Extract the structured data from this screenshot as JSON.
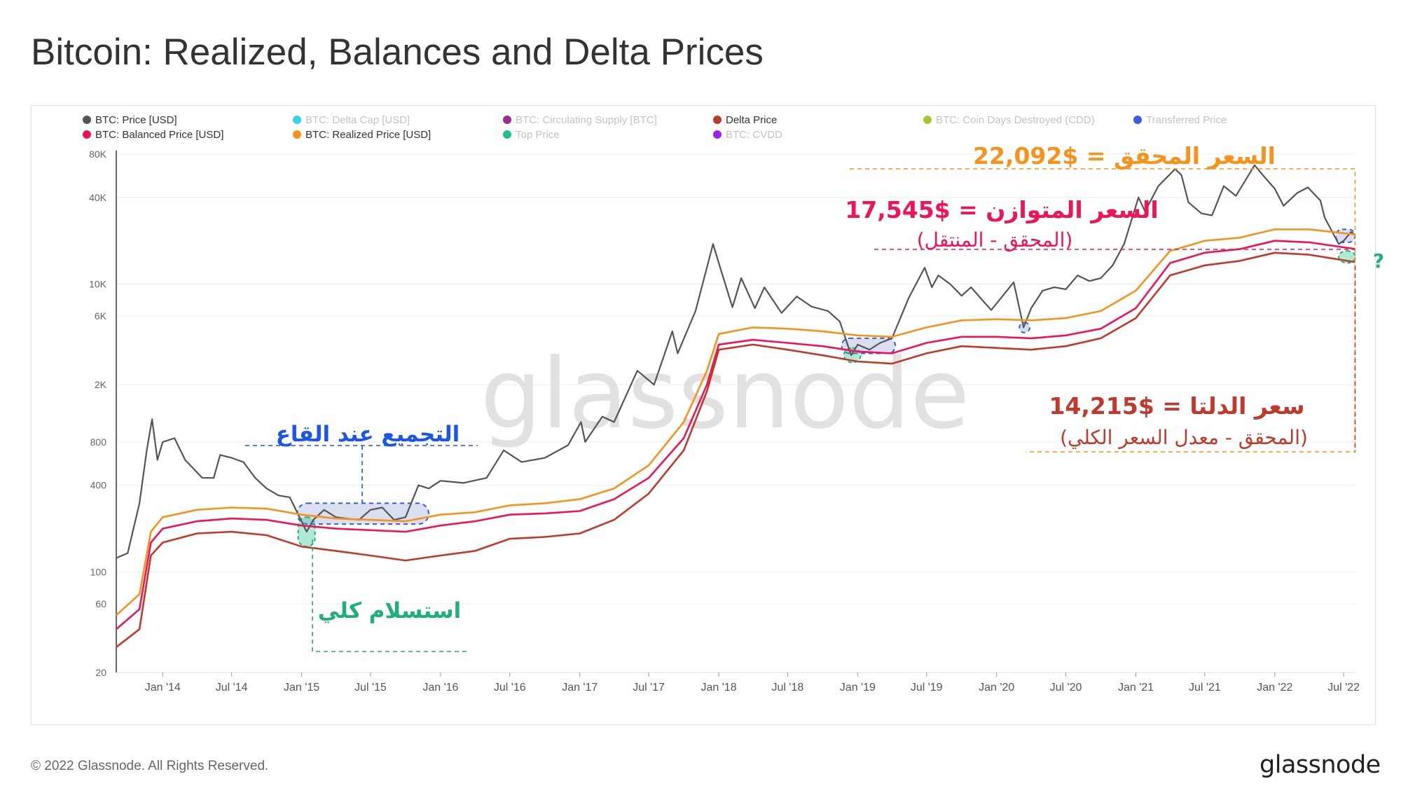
{
  "page": {
    "title": "Bitcoin: Realized, Balances and Delta Prices",
    "copyright": "© 2022 Glassnode. All Rights Reserved.",
    "logo": "glassnode",
    "watermark": "glassnode"
  },
  "chart_data": {
    "type": "line",
    "title": "Bitcoin: Realized, Balances and Delta Prices",
    "y_scale": "log",
    "ylim": [
      20,
      80000
    ],
    "xlim": [
      "2013-09-01",
      "2022-08-01"
    ],
    "grid": true,
    "legend_position": "top",
    "x_ticks": [
      {
        "label": "Jan '14",
        "date": "2014-01-01"
      },
      {
        "label": "Jul '14",
        "date": "2014-07-01"
      },
      {
        "label": "Jan '15",
        "date": "2015-01-01"
      },
      {
        "label": "Jul '15",
        "date": "2015-07-01"
      },
      {
        "label": "Jan '16",
        "date": "2016-01-01"
      },
      {
        "label": "Jul '16",
        "date": "2016-07-01"
      },
      {
        "label": "Jan '17",
        "date": "2017-01-01"
      },
      {
        "label": "Jul '17",
        "date": "2017-07-01"
      },
      {
        "label": "Jan '18",
        "date": "2018-01-01"
      },
      {
        "label": "Jul '18",
        "date": "2018-07-01"
      },
      {
        "label": "Jan '19",
        "date": "2019-01-01"
      },
      {
        "label": "Jul '19",
        "date": "2019-07-01"
      },
      {
        "label": "Jan '20",
        "date": "2020-01-01"
      },
      {
        "label": "Jul '20",
        "date": "2020-07-01"
      },
      {
        "label": "Jan '21",
        "date": "2021-01-01"
      },
      {
        "label": "Jul '21",
        "date": "2021-07-01"
      },
      {
        "label": "Jan '22",
        "date": "2022-01-01"
      },
      {
        "label": "Jul '22",
        "date": "2022-07-01"
      }
    ],
    "y_ticks": [
      {
        "label": "80K",
        "value": 80000
      },
      {
        "label": "40K",
        "value": 40000
      },
      {
        "label": "10K",
        "value": 10000
      },
      {
        "label": "6K",
        "value": 6000
      },
      {
        "label": "2K",
        "value": 2000
      },
      {
        "label": "800",
        "value": 800
      },
      {
        "label": "400",
        "value": 400
      },
      {
        "label": "100",
        "value": 100
      },
      {
        "label": "60",
        "value": 60
      },
      {
        "label": "20",
        "value": 20
      }
    ],
    "legend": [
      {
        "label": "BTC: Price [USD]",
        "color": "#555555",
        "active": true
      },
      {
        "label": "BTC: Delta Cap [USD]",
        "color": "#34d3e8",
        "active": false
      },
      {
        "label": "BTC: Circulating Supply [BTC]",
        "color": "#9b2c8f",
        "active": false
      },
      {
        "label": "Delta Price",
        "color": "#c0392b",
        "active": true
      },
      {
        "label": "BTC: Coin Days Destroyed (CDD)",
        "color": "#a4c930",
        "active": false
      },
      {
        "label": "Transferred Price",
        "color": "#3d5be0",
        "active": false
      },
      {
        "label": "BTC: Balanced Price [USD]",
        "color": "#f0135a",
        "active": true
      },
      {
        "label": "BTC: Realized Price [USD]",
        "color": "#f7931a",
        "active": true
      },
      {
        "label": "Top Price",
        "color": "#1fc08d",
        "active": false
      },
      {
        "label": "BTC: CVDD",
        "color": "#9b23e8",
        "active": false
      }
    ],
    "series": [
      {
        "name": "BTC: Price [USD]",
        "color": "#555555",
        "points": [
          [
            "2013-09-01",
            125
          ],
          [
            "2013-10-01",
            135
          ],
          [
            "2013-11-01",
            300
          ],
          [
            "2013-11-20",
            700
          ],
          [
            "2013-12-04",
            1150
          ],
          [
            "2013-12-18",
            600
          ],
          [
            "2014-01-01",
            800
          ],
          [
            "2014-02-01",
            850
          ],
          [
            "2014-03-01",
            600
          ],
          [
            "2014-04-15",
            450
          ],
          [
            "2014-05-15",
            450
          ],
          [
            "2014-06-01",
            650
          ],
          [
            "2014-07-01",
            620
          ],
          [
            "2014-08-01",
            580
          ],
          [
            "2014-09-01",
            450
          ],
          [
            "2014-10-01",
            380
          ],
          [
            "2014-11-01",
            340
          ],
          [
            "2014-12-01",
            330
          ],
          [
            "2015-01-14",
            190
          ],
          [
            "2015-02-01",
            230
          ],
          [
            "2015-03-01",
            270
          ],
          [
            "2015-04-01",
            240
          ],
          [
            "2015-06-01",
            230
          ],
          [
            "2015-07-01",
            270
          ],
          [
            "2015-08-01",
            280
          ],
          [
            "2015-09-01",
            230
          ],
          [
            "2015-10-01",
            240
          ],
          [
            "2015-11-04",
            400
          ],
          [
            "2015-12-01",
            380
          ],
          [
            "2016-01-01",
            430
          ],
          [
            "2016-03-01",
            415
          ],
          [
            "2016-05-01",
            450
          ],
          [
            "2016-06-15",
            700
          ],
          [
            "2016-08-01",
            580
          ],
          [
            "2016-10-01",
            620
          ],
          [
            "2016-12-01",
            760
          ],
          [
            "2017-01-04",
            1100
          ],
          [
            "2017-01-15",
            800
          ],
          [
            "2017-03-01",
            1200
          ],
          [
            "2017-04-01",
            1100
          ],
          [
            "2017-06-01",
            2500
          ],
          [
            "2017-07-15",
            2000
          ],
          [
            "2017-09-01",
            4700
          ],
          [
            "2017-09-15",
            3300
          ],
          [
            "2017-11-01",
            6500
          ],
          [
            "2017-12-17",
            19000
          ],
          [
            "2018-01-01",
            14000
          ],
          [
            "2018-02-06",
            6900
          ],
          [
            "2018-03-01",
            11000
          ],
          [
            "2018-04-06",
            6800
          ],
          [
            "2018-05-01",
            9500
          ],
          [
            "2018-06-15",
            6300
          ],
          [
            "2018-07-25",
            8200
          ],
          [
            "2018-09-01",
            7000
          ],
          [
            "2018-10-15",
            6500
          ],
          [
            "2018-11-15",
            5500
          ],
          [
            "2018-12-15",
            3200
          ],
          [
            "2019-01-01",
            3800
          ],
          [
            "2019-02-01",
            3500
          ],
          [
            "2019-03-01",
            3900
          ],
          [
            "2019-04-01",
            4200
          ],
          [
            "2019-05-15",
            8000
          ],
          [
            "2019-06-26",
            13000
          ],
          [
            "2019-07-15",
            9500
          ],
          [
            "2019-08-01",
            11500
          ],
          [
            "2019-09-01",
            10000
          ],
          [
            "2019-10-01",
            8300
          ],
          [
            "2019-10-26",
            9500
          ],
          [
            "2019-12-01",
            7400
          ],
          [
            "2019-12-18",
            6600
          ],
          [
            "2020-02-15",
            10300
          ],
          [
            "2020-03-12",
            5000
          ],
          [
            "2020-04-01",
            6800
          ],
          [
            "2020-05-01",
            9000
          ],
          [
            "2020-06-01",
            9500
          ],
          [
            "2020-07-01",
            9200
          ],
          [
            "2020-08-01",
            11500
          ],
          [
            "2020-09-01",
            10500
          ],
          [
            "2020-10-01",
            11000
          ],
          [
            "2020-11-01",
            13500
          ],
          [
            "2020-12-01",
            19000
          ],
          [
            "2021-01-08",
            40000
          ],
          [
            "2021-01-25",
            32000
          ],
          [
            "2021-03-01",
            48000
          ],
          [
            "2021-04-14",
            63000
          ],
          [
            "2021-05-01",
            57000
          ],
          [
            "2021-05-19",
            37000
          ],
          [
            "2021-06-22",
            31000
          ],
          [
            "2021-07-20",
            30000
          ],
          [
            "2021-08-20",
            48000
          ],
          [
            "2021-09-21",
            41000
          ],
          [
            "2021-11-09",
            67000
          ],
          [
            "2021-12-01",
            57000
          ],
          [
            "2022-01-01",
            46000
          ],
          [
            "2022-01-24",
            35000
          ],
          [
            "2022-03-01",
            43000
          ],
          [
            "2022-03-29",
            47000
          ],
          [
            "2022-05-01",
            38000
          ],
          [
            "2022-05-12",
            29000
          ],
          [
            "2022-06-18",
            19000
          ],
          [
            "2022-07-01",
            20000
          ],
          [
            "2022-07-20",
            23000
          ],
          [
            "2022-07-31",
            22000
          ]
        ]
      },
      {
        "name": "BTC: Realized Price [USD]",
        "color": "#f7931a",
        "points": [
          [
            "2013-09-01",
            50
          ],
          [
            "2013-11-01",
            70
          ],
          [
            "2013-12-01",
            190
          ],
          [
            "2014-01-01",
            240
          ],
          [
            "2014-04-01",
            270
          ],
          [
            "2014-07-01",
            280
          ],
          [
            "2014-10-01",
            275
          ],
          [
            "2015-01-01",
            250
          ],
          [
            "2015-04-01",
            235
          ],
          [
            "2015-07-01",
            230
          ],
          [
            "2015-10-01",
            225
          ],
          [
            "2016-01-01",
            250
          ],
          [
            "2016-04-01",
            260
          ],
          [
            "2016-07-01",
            290
          ],
          [
            "2016-10-01",
            300
          ],
          [
            "2017-01-01",
            320
          ],
          [
            "2017-04-01",
            380
          ],
          [
            "2017-07-01",
            550
          ],
          [
            "2017-10-01",
            1100
          ],
          [
            "2017-12-01",
            2500
          ],
          [
            "2018-01-01",
            4500
          ],
          [
            "2018-04-01",
            5000
          ],
          [
            "2018-07-01",
            4900
          ],
          [
            "2018-10-01",
            4700
          ],
          [
            "2019-01-01",
            4400
          ],
          [
            "2019-04-01",
            4300
          ],
          [
            "2019-07-01",
            5000
          ],
          [
            "2019-10-01",
            5600
          ],
          [
            "2020-01-01",
            5700
          ],
          [
            "2020-04-01",
            5600
          ],
          [
            "2020-07-01",
            5800
          ],
          [
            "2020-10-01",
            6500
          ],
          [
            "2021-01-01",
            9000
          ],
          [
            "2021-04-01",
            17000
          ],
          [
            "2021-07-01",
            20000
          ],
          [
            "2021-10-01",
            21000
          ],
          [
            "2022-01-01",
            24000
          ],
          [
            "2022-04-01",
            24000
          ],
          [
            "2022-07-31",
            22092
          ]
        ]
      },
      {
        "name": "BTC: Balanced Price [USD]",
        "color": "#f0135a",
        "points": [
          [
            "2013-09-01",
            40
          ],
          [
            "2013-11-01",
            55
          ],
          [
            "2013-12-01",
            160
          ],
          [
            "2014-01-01",
            200
          ],
          [
            "2014-04-01",
            225
          ],
          [
            "2014-07-01",
            235
          ],
          [
            "2014-10-01",
            230
          ],
          [
            "2015-01-01",
            210
          ],
          [
            "2015-04-01",
            200
          ],
          [
            "2015-07-01",
            195
          ],
          [
            "2015-10-01",
            190
          ],
          [
            "2016-01-01",
            210
          ],
          [
            "2016-04-01",
            225
          ],
          [
            "2016-07-01",
            250
          ],
          [
            "2016-10-01",
            255
          ],
          [
            "2017-01-01",
            265
          ],
          [
            "2017-04-01",
            320
          ],
          [
            "2017-07-01",
            450
          ],
          [
            "2017-10-01",
            850
          ],
          [
            "2017-12-01",
            2000
          ],
          [
            "2018-01-01",
            3800
          ],
          [
            "2018-04-01",
            4100
          ],
          [
            "2018-07-01",
            3900
          ],
          [
            "2018-10-01",
            3700
          ],
          [
            "2019-01-01",
            3400
          ],
          [
            "2019-04-01",
            3300
          ],
          [
            "2019-07-01",
            3900
          ],
          [
            "2019-10-01",
            4300
          ],
          [
            "2020-01-01",
            4300
          ],
          [
            "2020-04-01",
            4200
          ],
          [
            "2020-07-01",
            4400
          ],
          [
            "2020-10-01",
            4900
          ],
          [
            "2021-01-01",
            6800
          ],
          [
            "2021-04-01",
            14000
          ],
          [
            "2021-07-01",
            16500
          ],
          [
            "2021-10-01",
            17500
          ],
          [
            "2022-01-01",
            20000
          ],
          [
            "2022-04-01",
            19500
          ],
          [
            "2022-07-31",
            17545
          ]
        ]
      },
      {
        "name": "Delta Price",
        "color": "#c0392b",
        "points": [
          [
            "2013-09-01",
            30
          ],
          [
            "2013-11-01",
            40
          ],
          [
            "2013-12-01",
            130
          ],
          [
            "2014-01-01",
            160
          ],
          [
            "2014-04-01",
            185
          ],
          [
            "2014-07-01",
            190
          ],
          [
            "2014-10-01",
            180
          ],
          [
            "2015-01-01",
            150
          ],
          [
            "2015-04-01",
            140
          ],
          [
            "2015-07-01",
            130
          ],
          [
            "2015-10-01",
            120
          ],
          [
            "2016-01-01",
            130
          ],
          [
            "2016-04-01",
            140
          ],
          [
            "2016-07-01",
            170
          ],
          [
            "2016-10-01",
            175
          ],
          [
            "2017-01-01",
            185
          ],
          [
            "2017-04-01",
            230
          ],
          [
            "2017-07-01",
            350
          ],
          [
            "2017-10-01",
            700
          ],
          [
            "2017-12-01",
            1800
          ],
          [
            "2018-01-01",
            3500
          ],
          [
            "2018-04-01",
            3800
          ],
          [
            "2018-07-01",
            3500
          ],
          [
            "2018-10-01",
            3200
          ],
          [
            "2019-01-01",
            2900
          ],
          [
            "2019-04-01",
            2800
          ],
          [
            "2019-07-01",
            3300
          ],
          [
            "2019-10-01",
            3700
          ],
          [
            "2020-01-01",
            3600
          ],
          [
            "2020-04-01",
            3500
          ],
          [
            "2020-07-01",
            3700
          ],
          [
            "2020-10-01",
            4200
          ],
          [
            "2021-01-01",
            5800
          ],
          [
            "2021-04-01",
            11500
          ],
          [
            "2021-07-01",
            13500
          ],
          [
            "2021-10-01",
            14500
          ],
          [
            "2022-01-01",
            16500
          ],
          [
            "2022-04-01",
            16000
          ],
          [
            "2022-07-31",
            14215
          ]
        ]
      }
    ],
    "annotations": [
      {
        "id": "realized",
        "text": "السعر المحقق = $22,092",
        "color": "#f7931a"
      },
      {
        "id": "balanced",
        "text": "السعر المتوازن = $17,545",
        "color": "#f0135a"
      },
      {
        "id": "balanced_sub",
        "text": "(المحقق - المنتقل)",
        "color": "#f0135a"
      },
      {
        "id": "delta",
        "text": "سعر الدلتا = $14,215",
        "color": "#c0392b"
      },
      {
        "id": "delta_sub",
        "text": "(المحقق - معدل السعر الكلي)",
        "color": "#c0392b"
      },
      {
        "id": "accumulation",
        "text": "التجميع عند القاع",
        "color": "#1a56e8"
      },
      {
        "id": "capitulation",
        "text": "استسلام كلي",
        "color": "#1fb07a"
      },
      {
        "id": "question",
        "text": "?",
        "color": "#1fb07a"
      }
    ]
  }
}
